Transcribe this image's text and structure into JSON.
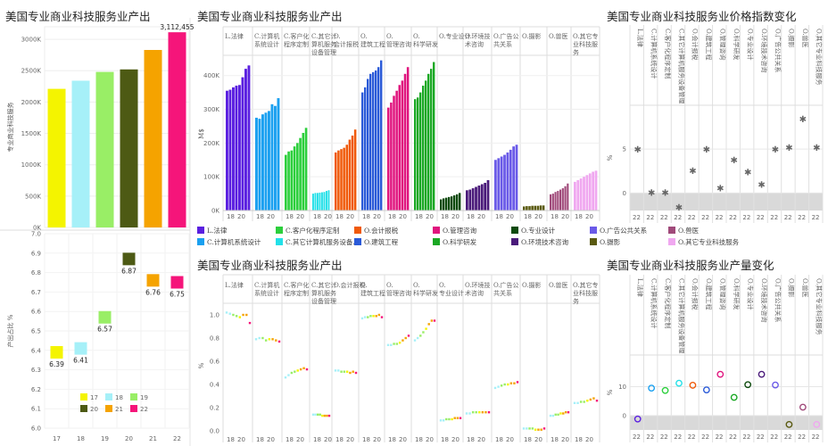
{
  "titles": {
    "left": "美国专业商业科技服务业产出",
    "center_top": "美国专业商业科技服务业产出",
    "right_top": "美国专业商业科技服务业价格指数变化",
    "center_bottom": "美国专业商业科技服务业产出",
    "right_bottom": "美国专业商业科技服务业产量变化"
  },
  "chart_data": [
    {
      "id": "output_by_year",
      "type": "bar",
      "categories": [
        "17",
        "18",
        "19",
        "20",
        "21",
        "22"
      ],
      "values": [
        2210000,
        2340000,
        2480000,
        2520000,
        2830000,
        3112455
      ],
      "data_labels": [
        "",
        "",
        "",
        "",
        "",
        "3,112,455"
      ],
      "colors": [
        "#f4f400",
        "#a6f0f8",
        "#99ee66",
        "#4d5a14",
        "#f5a300",
        "#f5157a"
      ],
      "ylabel": "专业商业科技服务",
      "ylim": [
        0,
        3200000
      ],
      "yticks": [
        0,
        500000,
        1000000,
        1500000,
        2000000,
        2500000,
        3000000
      ],
      "ytick_labels": [
        "0K",
        "500K",
        "1000K",
        "1500K",
        "2000K",
        "2500K",
        "3000K"
      ]
    },
    {
      "id": "gdp_share",
      "type": "scatter",
      "x": [
        "17",
        "18",
        "19",
        "20",
        "21",
        "22"
      ],
      "values": [
        6.39,
        6.41,
        6.57,
        6.87,
        6.76,
        6.75
      ],
      "data_labels": [
        "6.39",
        "6.41",
        "6.57",
        "6.87",
        "6.76",
        "6.75"
      ],
      "colors": [
        "#f4f400",
        "#a6f0f8",
        "#99ee66",
        "#4d5a14",
        "#f5a300",
        "#f5157a"
      ],
      "ylabel": "产出占比 %",
      "ylim": [
        6.0,
        7.0
      ],
      "yticks": [
        6.0,
        6.1,
        6.2,
        6.3,
        6.4,
        6.5,
        6.6,
        6.7,
        6.8,
        6.9,
        7.0
      ],
      "ytick_labels": [
        "6.0",
        "6.1",
        "6.2",
        "6.3",
        "6.4",
        "6.5",
        "6.6",
        "6.7",
        "6.8",
        "6.9",
        "7.0"
      ],
      "xtick_labels": [
        "17",
        "18",
        "19",
        "20",
        "21",
        "22"
      ],
      "legend": [
        "17",
        "18",
        "19",
        "20",
        "21",
        "22"
      ]
    },
    {
      "id": "output_by_subsector",
      "type": "bar",
      "ylabel": "M$",
      "ylim": [
        0,
        460
      ],
      "yticks": [
        0,
        100,
        200,
        300,
        400
      ],
      "ytick_labels": [
        "0K",
        "100K",
        "200K",
        "300K",
        "400K"
      ],
      "xtick_labels": [
        "18",
        "20"
      ],
      "series": [
        {
          "name": "L.法律",
          "color": "#5a1fe0",
          "values": [
            355,
            358,
            365,
            370,
            372,
            395,
            420,
            430
          ]
        },
        {
          "name": "C.计算机系统设计",
          "color": "#1aa0f0",
          "values": [
            275,
            272,
            285,
            290,
            295,
            315,
            310,
            333
          ]
        },
        {
          "name": "C.客户化程序定制",
          "color": "#2ccf3c",
          "values": [
            165,
            175,
            178,
            190,
            200,
            215,
            230,
            245
          ]
        },
        {
          "name": "C.其它计算机服务设备管理",
          "color": "#22e0e8",
          "values": [
            50,
            52,
            52,
            53,
            54,
            55,
            58,
            60
          ]
        },
        {
          "name": "O.会计报税",
          "color": "#f05a0a",
          "values": [
            172,
            178,
            182,
            186,
            195,
            210,
            222,
            240
          ]
        },
        {
          "name": "O.建筑工程",
          "color": "#2a5ad8",
          "values": [
            350,
            365,
            390,
            405,
            410,
            415,
            425,
            445
          ]
        },
        {
          "name": "O.管理咨询",
          "color": "#e0147e",
          "values": [
            305,
            320,
            340,
            355,
            372,
            385,
            405,
            425
          ]
        },
        {
          "name": "O.科学研发",
          "color": "#1aa824",
          "values": [
            330,
            335,
            350,
            370,
            385,
            405,
            420,
            440
          ]
        },
        {
          "name": "O.专业设计",
          "color": "#0d4a0d",
          "values": [
            33,
            36,
            38,
            40,
            42,
            45,
            48,
            52
          ]
        },
        {
          "name": "O.环境技术咨询",
          "color": "#4a1a7a",
          "values": [
            60,
            62,
            66,
            70,
            74,
            78,
            82,
            90
          ]
        },
        {
          "name": "O.广告公共关系",
          "color": "#6a5ae8",
          "values": [
            150,
            155,
            160,
            165,
            172,
            180,
            190,
            195
          ]
        },
        {
          "name": "O.摄影",
          "color": "#5a5a10",
          "values": [
            12,
            13,
            13,
            14,
            14,
            14,
            15,
            15
          ]
        },
        {
          "name": "O.兽医",
          "color": "#a04a7a",
          "values": [
            48,
            50,
            55,
            58,
            62,
            66,
            72,
            80
          ]
        },
        {
          "name": "O.其它专业科技服务",
          "color": "#f0a8f0",
          "values": [
            85,
            90,
            95,
            100,
            105,
            110,
            115,
            118
          ]
        }
      ]
    },
    {
      "id": "price_index_change",
      "type": "scatter",
      "ylabel": "%",
      "ylim": [
        -2,
        10
      ],
      "yticks": [
        0,
        5
      ],
      "ytick_labels": [
        "0",
        "5"
      ],
      "xtick_labels": [
        "22"
      ],
      "categories": [
        "L.法律",
        "C.计算机系统设计",
        "C.客户化程序定制",
        "C.其它计算机服务设备管理",
        "O.会计报税",
        "O.建筑工程",
        "O.管理咨询",
        "O.科学研发",
        "O.专业设计",
        "O.环境技术咨询",
        "O.广告公共关系",
        "O.摄影",
        "O.兽医",
        "O.其它专业科技服务"
      ],
      "values": [
        5.0,
        0.1,
        0.1,
        -1.6,
        2.6,
        5.0,
        0.6,
        3.8,
        2.4,
        1.0,
        5.0,
        5.2,
        8.5,
        5.2
      ],
      "colors": [
        "#5a1fe0",
        "#1aa0f0",
        "#2ccf3c",
        "#22e0e8",
        "#f05a0a",
        "#2a5ad8",
        "#e0147e",
        "#1aa824",
        "#0d4a0d",
        "#4a1a7a",
        "#6a5ae8",
        "#5a5a10",
        "#a04a7a",
        "#f0a8f0"
      ]
    },
    {
      "id": "output_share_by_subsector",
      "type": "scatter",
      "ylabel": "%",
      "ylim": [
        0,
        1.1
      ],
      "yticks": [
        0,
        0.2,
        0.4,
        0.6,
        0.8,
        1.0
      ],
      "ytick_labels": [
        "0.0",
        "0.2",
        "0.4",
        "0.6",
        "0.8",
        "1.0"
      ],
      "xtick_labels": [
        "18",
        "20"
      ],
      "series": [
        {
          "name": "L.法律",
          "values": [
            1.02,
            1.01,
            1.0,
            0.99,
            0.98,
            1.0,
            1.0,
            0.93
          ]
        },
        {
          "name": "C.计算机系统设计",
          "values": [
            0.79,
            0.8,
            0.8,
            0.78,
            0.79,
            0.79,
            0.78,
            0.77
          ]
        },
        {
          "name": "C.客户化程序定制",
          "values": [
            0.46,
            0.48,
            0.5,
            0.51,
            0.52,
            0.53,
            0.54,
            0.53
          ]
        },
        {
          "name": "C.其它计算机服务设备管理",
          "values": [
            0.14,
            0.14,
            0.14,
            0.14,
            0.13,
            0.13,
            0.13,
            0.13
          ]
        },
        {
          "name": "O.会计报税",
          "values": [
            0.52,
            0.52,
            0.51,
            0.51,
            0.51,
            0.5,
            0.51,
            0.5
          ]
        },
        {
          "name": "O.建筑工程",
          "values": [
            0.97,
            0.98,
            0.98,
            0.99,
            0.99,
            0.99,
            1.0,
            0.98
          ]
        },
        {
          "name": "O.管理咨询",
          "values": [
            0.74,
            0.74,
            0.75,
            0.75,
            0.76,
            0.78,
            0.8,
            0.82
          ]
        },
        {
          "name": "O.科学研发",
          "values": [
            0.78,
            0.8,
            0.82,
            0.85,
            0.88,
            0.92,
            0.95,
            0.95
          ]
        },
        {
          "name": "O.专业设计",
          "values": [
            0.09,
            0.09,
            0.1,
            0.1,
            0.1,
            0.11,
            0.11,
            0.11
          ]
        },
        {
          "name": "O.环境技术咨询",
          "values": [
            0.15,
            0.15,
            0.16,
            0.16,
            0.16,
            0.16,
            0.16,
            0.16
          ]
        },
        {
          "name": "O.广告公共关系",
          "values": [
            0.37,
            0.38,
            0.39,
            0.4,
            0.4,
            0.41,
            0.41,
            0.42
          ]
        },
        {
          "name": "O.摄影",
          "values": [
            0.02,
            0.02,
            0.02,
            0.02,
            0.01,
            0.01,
            0.01,
            0.02
          ]
        },
        {
          "name": "O.兽医",
          "values": [
            0.13,
            0.13,
            0.14,
            0.14,
            0.15,
            0.15,
            0.16,
            0.16
          ]
        },
        {
          "name": "O.其它专业科技服务",
          "values": [
            0.24,
            0.24,
            0.25,
            0.25,
            0.26,
            0.27,
            0.28,
            0.26
          ]
        }
      ],
      "gradient_colors": [
        "#a6f0f8",
        "#99ee66",
        "#f4f400",
        "#f5a300",
        "#f5157a"
      ]
    },
    {
      "id": "output_volume_change",
      "type": "scatter",
      "ylabel": "%",
      "ylim": [
        -5,
        21
      ],
      "yticks": [
        0,
        10
      ],
      "ytick_labels": [
        "0",
        "10"
      ],
      "xtick_labels": [
        "22"
      ],
      "categories": [
        "L.法律",
        "C.计算机系统设计",
        "C.客户化程序定制",
        "C.其它计算机服务设备管理",
        "O.会计报税",
        "O.建筑工程",
        "O.管理咨询",
        "O.科学研发",
        "O.专业设计",
        "O.环境技术咨询",
        "O.广告公共关系",
        "O.摄影",
        "O.兽医",
        "O.其它专业科技服务"
      ],
      "values": [
        -1.2,
        9.5,
        8.7,
        11.2,
        10.5,
        8.9,
        14.3,
        6.3,
        10.7,
        14.3,
        10.6,
        -3.1,
        2.9,
        -3.1
      ],
      "colors": [
        "#5a1fe0",
        "#1aa0f0",
        "#2ccf3c",
        "#22e0e8",
        "#f05a0a",
        "#2a5ad8",
        "#e0147e",
        "#1aa824",
        "#0d4a0d",
        "#4a1a7a",
        "#6a5ae8",
        "#5a5a10",
        "#a04a7a",
        "#f0a8f0"
      ]
    }
  ],
  "col_headers_center": [
    [
      "L.法律"
    ],
    [
      "C.计算机",
      "系统设计"
    ],
    [
      "C.客户化",
      "程序定制"
    ],
    [
      "C.其它计",
      "算机服务",
      "设备管理"
    ],
    [
      "O.",
      "会计报税"
    ],
    [
      "O.",
      "建筑工程"
    ],
    [
      "O.",
      "管理咨询"
    ],
    [
      "O.",
      "科学研发"
    ],
    [
      "O.专业设计"
    ],
    [
      "O.环境技",
      "术咨询"
    ],
    [
      "O.广告公",
      "共关系"
    ],
    [
      "O.摄影"
    ],
    [
      "O.兽医"
    ],
    [
      "O.其它专",
      "业科技服",
      "务"
    ]
  ],
  "col_headers_center_bottom": [
    [
      "L.法律"
    ],
    [
      "C.计算机",
      "系统设计"
    ],
    [
      "C.客户化",
      "程序定制"
    ],
    [
      "C.其它计",
      "算机服务",
      "设备管理"
    ],
    [
      "O.会计报税"
    ],
    [
      "O.",
      "建筑工程"
    ],
    [
      "O.",
      "管理咨询"
    ],
    [
      "O.",
      "科学研发"
    ],
    [
      "O.",
      "专业设计"
    ],
    [
      "O.环境技",
      "术咨询"
    ],
    [
      "O.广告公",
      "共关系"
    ],
    [
      "O.摄影"
    ],
    [
      "O.兽医"
    ],
    [
      "O.其它专",
      "业科技服",
      "务"
    ]
  ],
  "legend_center": [
    {
      "label": "L.法律",
      "color": "#5a1fe0"
    },
    {
      "label": "C.客户化程序定制",
      "color": "#2ccf3c"
    },
    {
      "label": "O.会计报税",
      "color": "#f05a0a"
    },
    {
      "label": "O.管理咨询",
      "color": "#e0147e"
    },
    {
      "label": "O.专业设计",
      "color": "#0d4a0d"
    },
    {
      "label": "O.广告公共关系",
      "color": "#6a5ae8"
    },
    {
      "label": "O.兽医",
      "color": "#a04a7a"
    },
    {
      "label": "C.计算机系统设计",
      "color": "#1aa0f0"
    },
    {
      "label": "C.其它计算机服务设备...",
      "color": "#22e0e8"
    },
    {
      "label": "O.建筑工程",
      "color": "#2a5ad8"
    },
    {
      "label": "O.科学研发",
      "color": "#1aa824"
    },
    {
      "label": "O.环境技术咨询",
      "color": "#4a1a7a"
    },
    {
      "label": "O.摄影",
      "color": "#5a5a10"
    },
    {
      "label": "O.其它专业科技服务",
      "color": "#f0a8f0"
    }
  ],
  "right_col_labels": [
    "L.法律",
    "C.计算机系统设计",
    "C.客户化程序定制",
    "C.其它计算机服务设备管理",
    "O.会计报税",
    "O.建筑工程",
    "O.管理咨询",
    "O.科学研发",
    "O.专业设计",
    "O.环境技术咨询",
    "O.广告公共关系",
    "O.摄影",
    "O.兽医",
    "O.其它专业科技服务"
  ]
}
